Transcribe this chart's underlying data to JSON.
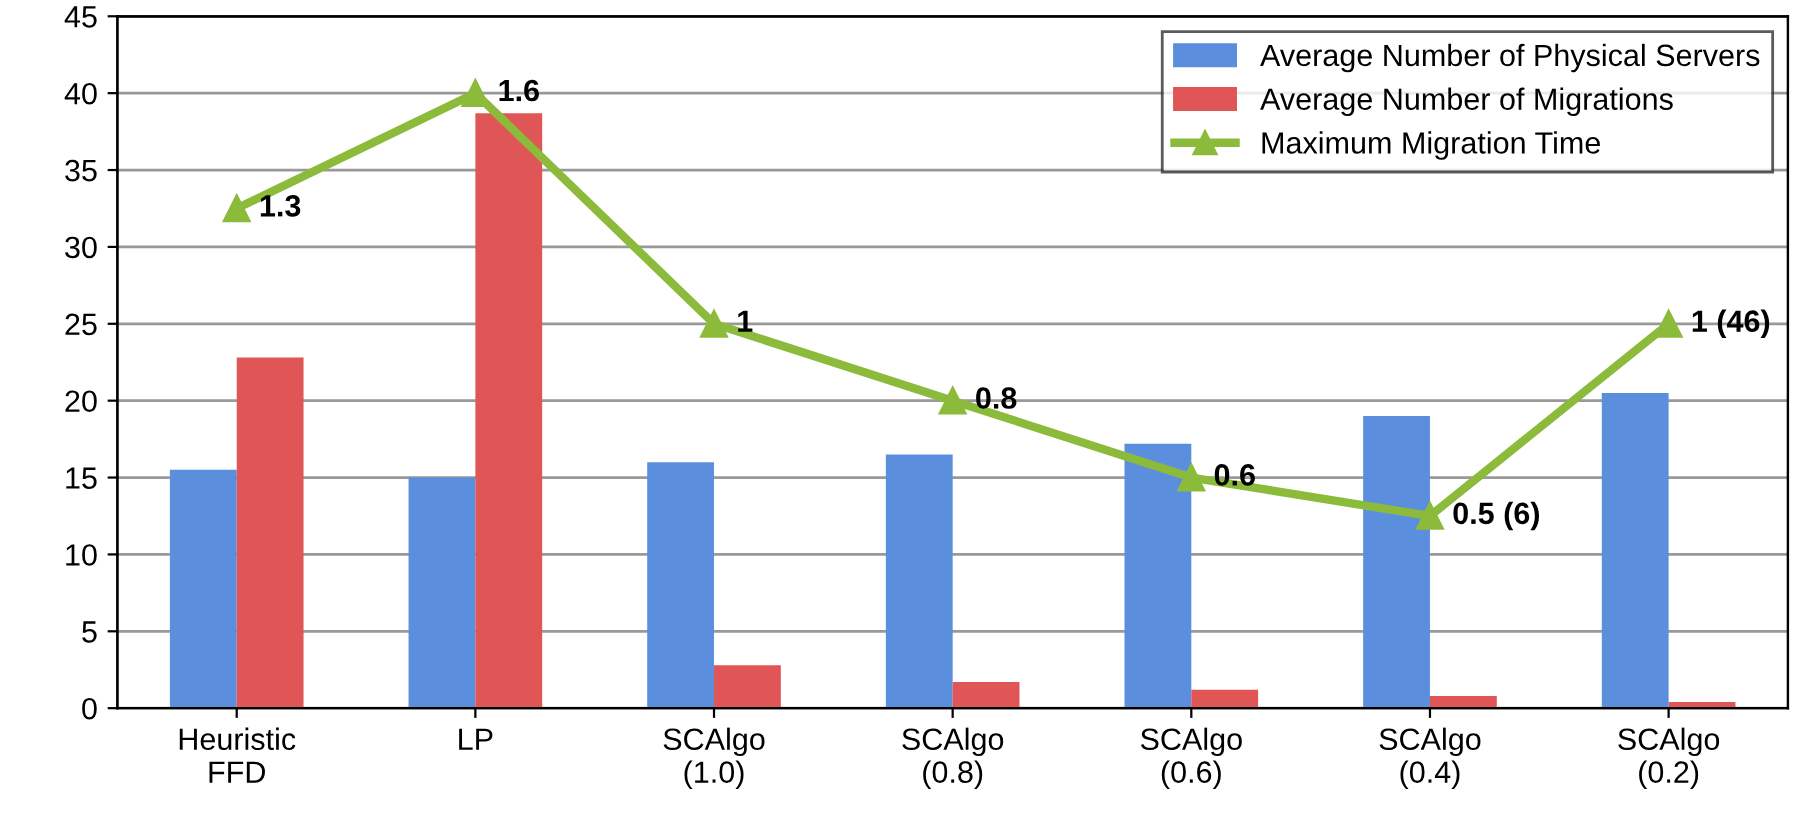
{
  "chart_data": {
    "type": "bar",
    "categories": [
      "Heuristic\nFFD",
      "LP",
      "SCAlgo\n(1.0)",
      "SCAlgo\n(0.8)",
      "SCAlgo\n(0.6)",
      "SCAlgo\n(0.4)",
      "SCAlgo\n(0.2)"
    ],
    "series": [
      {
        "name": "Average Number of Physical Servers",
        "color": "#5b8fde",
        "values": [
          15.5,
          15,
          16,
          16.5,
          17.2,
          19,
          20.5
        ]
      },
      {
        "name": "Average Number of Migrations",
        "color": "#e05555",
        "values": [
          22.8,
          38.7,
          2.8,
          1.7,
          1.2,
          0.8,
          0.4
        ]
      },
      {
        "name": "Maximum Migration Time",
        "type": "line",
        "axis": "y2",
        "color": "#8cbb3c",
        "marker": "triangle",
        "values": [
          1.3,
          1.6,
          1,
          0.8,
          0.6,
          0.5,
          1
        ],
        "value_labels": [
          "1.3",
          "1.6",
          "1",
          "0.8",
          "0.6",
          "0.5 (6)",
          "1 (46)"
        ]
      }
    ],
    "ylim": [
      0,
      45
    ],
    "yticks": [
      0,
      5,
      10,
      15,
      20,
      25,
      30,
      35,
      40,
      45
    ],
    "y2lim": [
      0,
      1.8
    ],
    "grid": "y",
    "legend": "top right"
  }
}
